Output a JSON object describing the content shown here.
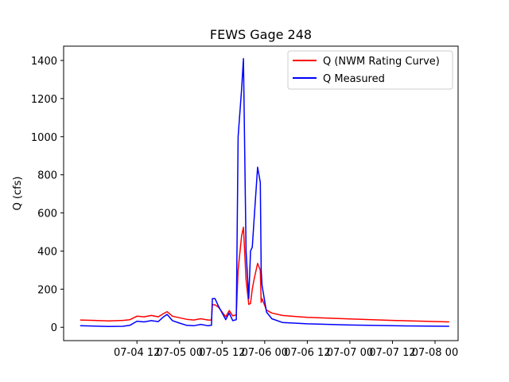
{
  "chart_data": {
    "type": "line",
    "title": "FEWS Gage 248",
    "xlabel": "",
    "ylabel": "Q (cfs)",
    "xlim": [
      "2023-07-03 15:20",
      "2023-07-08 06:30"
    ],
    "ylim": [
      -70,
      1475
    ],
    "grid": false,
    "legend": "top-right",
    "x_ticks": [
      {
        "at": "2023-07-04 12:00",
        "label": "07-04 12"
      },
      {
        "at": "2023-07-05 00:00",
        "label": "07-05 00"
      },
      {
        "at": "2023-07-05 12:00",
        "label": "07-05 12"
      },
      {
        "at": "2023-07-06 00:00",
        "label": "07-06 00"
      },
      {
        "at": "2023-07-06 12:00",
        "label": "07-06 12"
      },
      {
        "at": "2023-07-07 00:00",
        "label": "07-07 00"
      },
      {
        "at": "2023-07-07 12:00",
        "label": "07-07 12"
      },
      {
        "at": "2023-07-08 00:00",
        "label": "07-08 00"
      }
    ],
    "y_ticks": [
      0,
      200,
      400,
      600,
      800,
      1000,
      1200,
      1400
    ],
    "series": [
      {
        "name": "Q (NWM Rating Curve)",
        "color": "#ff0000",
        "points": [
          [
            "2023-07-03 20:00",
            38
          ],
          [
            "2023-07-04 00:00",
            36
          ],
          [
            "2023-07-04 04:00",
            33
          ],
          [
            "2023-07-04 08:00",
            36
          ],
          [
            "2023-07-04 10:00",
            40
          ],
          [
            "2023-07-04 12:00",
            58
          ],
          [
            "2023-07-04 14:00",
            55
          ],
          [
            "2023-07-04 16:00",
            62
          ],
          [
            "2023-07-04 18:00",
            55
          ],
          [
            "2023-07-04 19:30",
            72
          ],
          [
            "2023-07-04 20:30",
            82
          ],
          [
            "2023-07-04 22:00",
            58
          ],
          [
            "2023-07-05 00:00",
            50
          ],
          [
            "2023-07-05 02:00",
            42
          ],
          [
            "2023-07-05 04:00",
            38
          ],
          [
            "2023-07-05 06:00",
            45
          ],
          [
            "2023-07-05 08:00",
            38
          ],
          [
            "2023-07-05 09:00",
            38
          ],
          [
            "2023-07-05 09:15",
            118
          ],
          [
            "2023-07-05 10:00",
            118
          ],
          [
            "2023-07-05 11:00",
            105
          ],
          [
            "2023-07-05 12:00",
            80
          ],
          [
            "2023-07-05 13:00",
            55
          ],
          [
            "2023-07-05 14:00",
            88
          ],
          [
            "2023-07-05 15:00",
            60
          ],
          [
            "2023-07-05 16:00",
            65
          ],
          [
            "2023-07-05 16:30",
            300
          ],
          [
            "2023-07-05 17:30",
            480
          ],
          [
            "2023-07-05 18:00",
            525
          ],
          [
            "2023-07-05 18:45",
            250
          ],
          [
            "2023-07-05 19:30",
            120
          ],
          [
            "2023-07-05 20:00",
            125
          ],
          [
            "2023-07-05 20:30",
            200
          ],
          [
            "2023-07-05 21:00",
            250
          ],
          [
            "2023-07-05 22:00",
            335
          ],
          [
            "2023-07-05 22:45",
            300
          ],
          [
            "2023-07-05 23:00",
            130
          ],
          [
            "2023-07-05 23:15",
            150
          ],
          [
            "2023-07-06 00:30",
            90
          ],
          [
            "2023-07-06 02:00",
            75
          ],
          [
            "2023-07-06 05:00",
            62
          ],
          [
            "2023-07-06 12:00",
            52
          ],
          [
            "2023-07-07 00:00",
            44
          ],
          [
            "2023-07-07 12:00",
            36
          ],
          [
            "2023-07-08 04:00",
            28
          ]
        ]
      },
      {
        "name": "Q Measured",
        "color": "#0000ff",
        "points": [
          [
            "2023-07-03 20:00",
            8
          ],
          [
            "2023-07-04 00:00",
            6
          ],
          [
            "2023-07-04 04:00",
            4
          ],
          [
            "2023-07-04 08:00",
            5
          ],
          [
            "2023-07-04 10:00",
            10
          ],
          [
            "2023-07-04 12:00",
            32
          ],
          [
            "2023-07-04 14:00",
            28
          ],
          [
            "2023-07-04 16:00",
            35
          ],
          [
            "2023-07-04 18:00",
            30
          ],
          [
            "2023-07-04 19:30",
            55
          ],
          [
            "2023-07-04 20:30",
            68
          ],
          [
            "2023-07-04 22:00",
            35
          ],
          [
            "2023-07-05 00:00",
            22
          ],
          [
            "2023-07-05 02:00",
            10
          ],
          [
            "2023-07-05 04:00",
            8
          ],
          [
            "2023-07-05 06:00",
            15
          ],
          [
            "2023-07-05 08:00",
            8
          ],
          [
            "2023-07-05 09:00",
            10
          ],
          [
            "2023-07-05 09:15",
            150
          ],
          [
            "2023-07-05 10:00",
            150
          ],
          [
            "2023-07-05 11:00",
            110
          ],
          [
            "2023-07-05 12:00",
            75
          ],
          [
            "2023-07-05 13:00",
            40
          ],
          [
            "2023-07-05 14:00",
            75
          ],
          [
            "2023-07-05 15:00",
            35
          ],
          [
            "2023-07-05 16:00",
            40
          ],
          [
            "2023-07-05 16:30",
            1000
          ],
          [
            "2023-07-05 17:30",
            1250
          ],
          [
            "2023-07-05 18:00",
            1410
          ],
          [
            "2023-07-05 18:45",
            400
          ],
          [
            "2023-07-05 19:30",
            150
          ],
          [
            "2023-07-05 20:00",
            400
          ],
          [
            "2023-07-05 20:30",
            420
          ],
          [
            "2023-07-05 21:00",
            560
          ],
          [
            "2023-07-05 22:00",
            840
          ],
          [
            "2023-07-05 22:45",
            760
          ],
          [
            "2023-07-05 23:00",
            300
          ],
          [
            "2023-07-05 23:15",
            220
          ],
          [
            "2023-07-06 00:30",
            80
          ],
          [
            "2023-07-06 02:00",
            45
          ],
          [
            "2023-07-06 05:00",
            25
          ],
          [
            "2023-07-06 12:00",
            18
          ],
          [
            "2023-07-07 00:00",
            12
          ],
          [
            "2023-07-07 12:00",
            8
          ],
          [
            "2023-07-08 04:00",
            5
          ]
        ]
      }
    ]
  }
}
